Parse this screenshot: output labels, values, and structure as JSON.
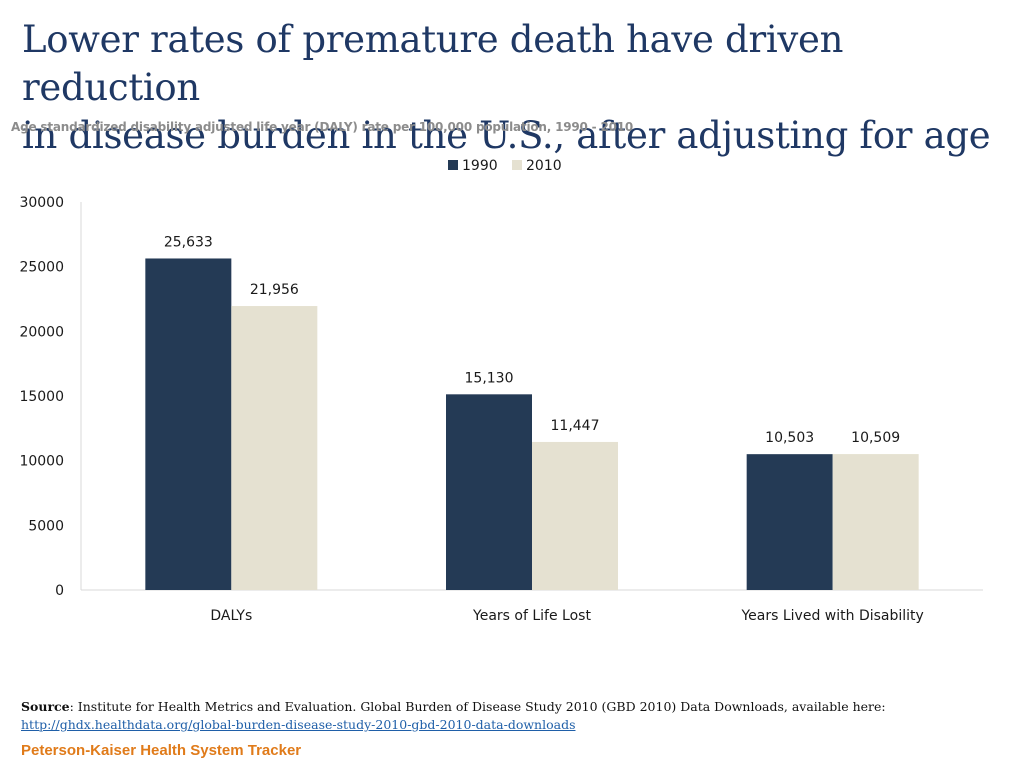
{
  "page": {
    "title_line1": "Lower rates of premature death have driven reduction",
    "title_line2": "in disease burden in the U.S., after adjusting for age",
    "subtitle": "Age standardized disability adjusted life year (DALY) rate per 100,000 population, 1990 - 2010",
    "source_label": "Source",
    "source_text": ": Institute for Health Metrics and Evaluation. Global Burden of Disease Study 2010 (GBD 2010) Data Downloads, available here:",
    "source_link": "http://ghdx.healthdata.org/global-burden-disease-study-2010-gbd-2010-data-downloads",
    "footer_brand": "Peterson-Kaiser Health System Tracker"
  },
  "chart_data": {
    "type": "bar",
    "categories": [
      "DALYs",
      "Years of Life Lost",
      "Years Lived with Disability"
    ],
    "series": [
      {
        "name": "1990",
        "values": [
          25633,
          15130,
          10503
        ],
        "labels": [
          "25,633",
          "15,130",
          "10,503"
        ],
        "color": "#243a55"
      },
      {
        "name": "2010",
        "values": [
          21956,
          11447,
          10509
        ],
        "labels": [
          "21,956",
          "11,447",
          "10,509"
        ],
        "color": "#e5e1d1"
      }
    ],
    "ylim": [
      0,
      30000
    ],
    "yticks": [
      "0",
      "5000",
      "10000",
      "15000",
      "20000",
      "25000",
      "30000"
    ],
    "legend_position": "top-center",
    "grid": false,
    "xlabel": "",
    "ylabel": ""
  }
}
